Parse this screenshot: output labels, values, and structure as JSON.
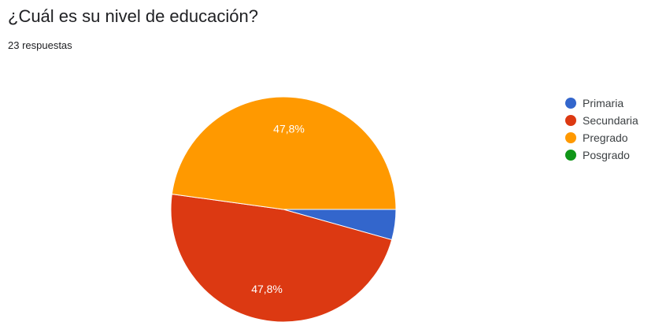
{
  "question": {
    "title": "¿Cuál es su nivel de educación?",
    "responses": "23 respuestas"
  },
  "chart_data": {
    "type": "pie",
    "title": "¿Cuál es su nivel de educación?",
    "total_responses": 23,
    "categories": [
      "Primaria",
      "Secundaria",
      "Pregrado",
      "Posgrado"
    ],
    "values": [
      1,
      11,
      11,
      0
    ],
    "percent_labels": [
      "",
      "47,8%",
      "47,8%",
      ""
    ],
    "colors": [
      "#3366cc",
      "#dc3912",
      "#ff9900",
      "#109618"
    ],
    "legend_position": "right"
  }
}
